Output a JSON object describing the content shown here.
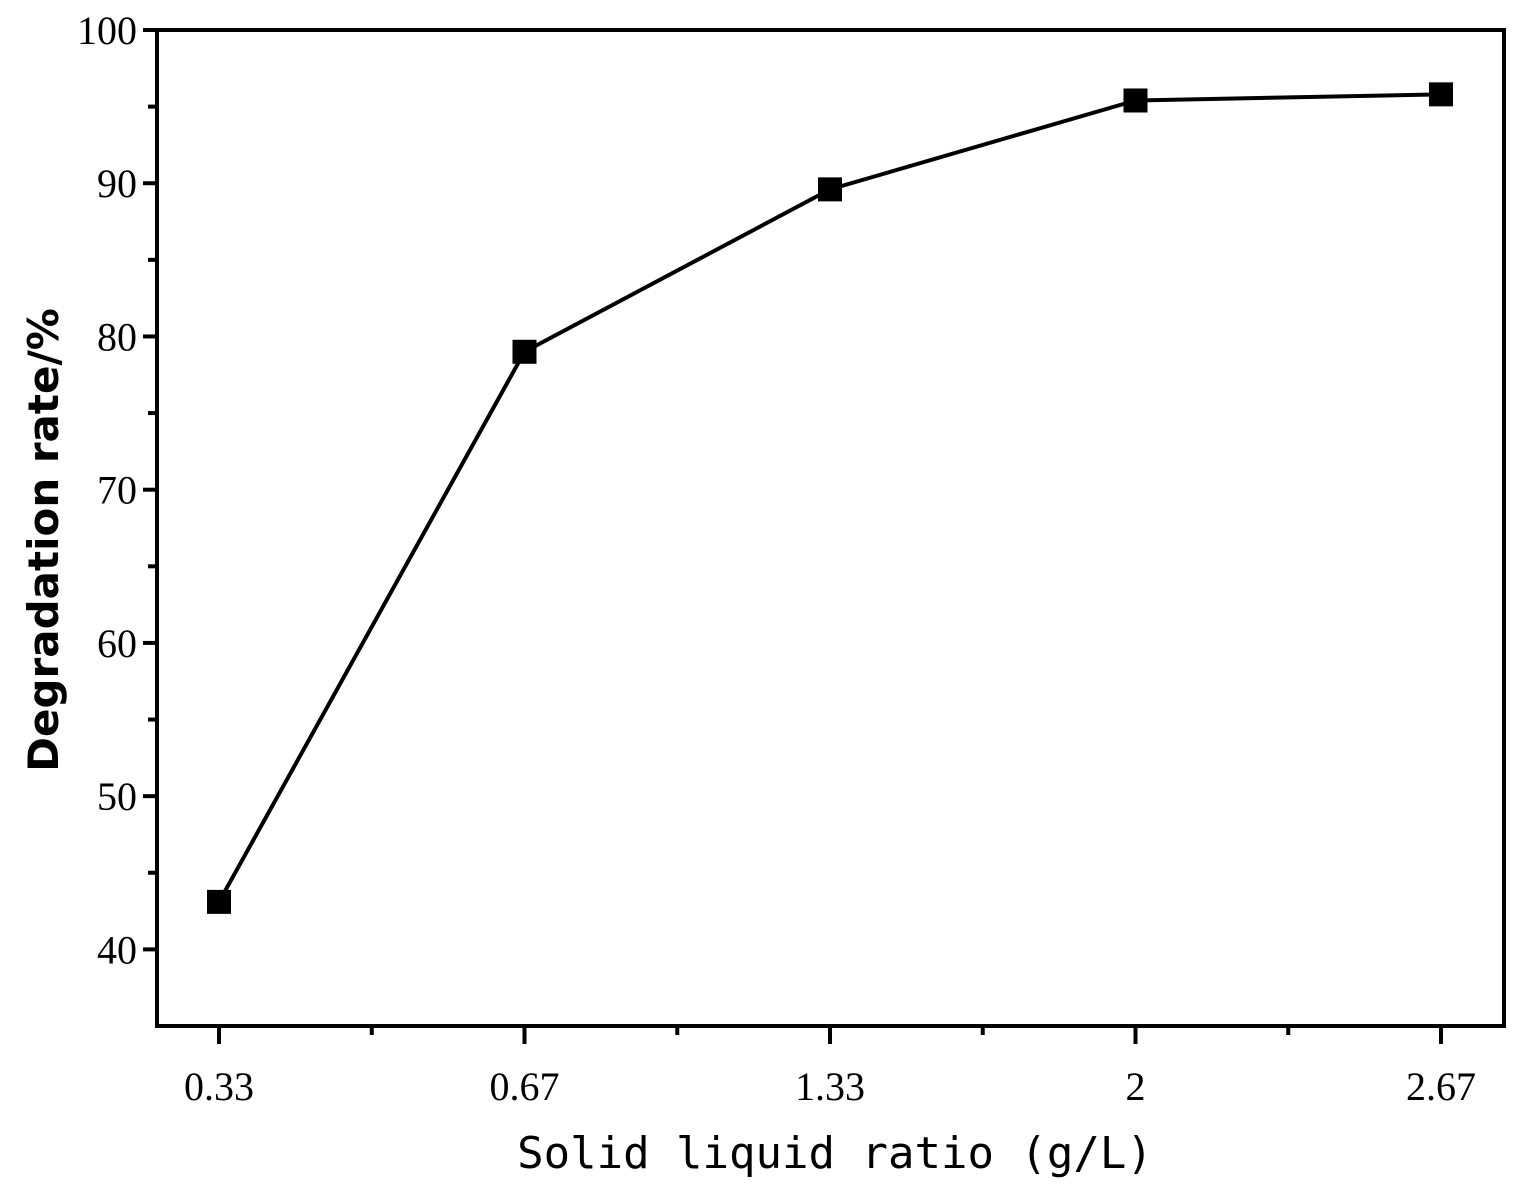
{
  "chart_data": {
    "type": "line",
    "title": "",
    "xlabel": "Solid liquid ratio (g/L)",
    "ylabel": "Degradation rate/%",
    "categories": [
      "0.33",
      "0.67",
      "1.33",
      "2",
      "2.67"
    ],
    "series": [
      {
        "name": "Degradation rate",
        "marker": "square",
        "color": "#000000",
        "values": [
          43.1,
          79.0,
          89.6,
          95.4,
          95.8
        ]
      }
    ],
    "ylim": [
      35,
      100
    ],
    "yticks": [
      40,
      50,
      60,
      70,
      80,
      90,
      100
    ],
    "ytick_labels": [
      "40",
      "50",
      "60",
      "70",
      "80",
      "90",
      "100"
    ],
    "grid": false,
    "legend": "none"
  }
}
